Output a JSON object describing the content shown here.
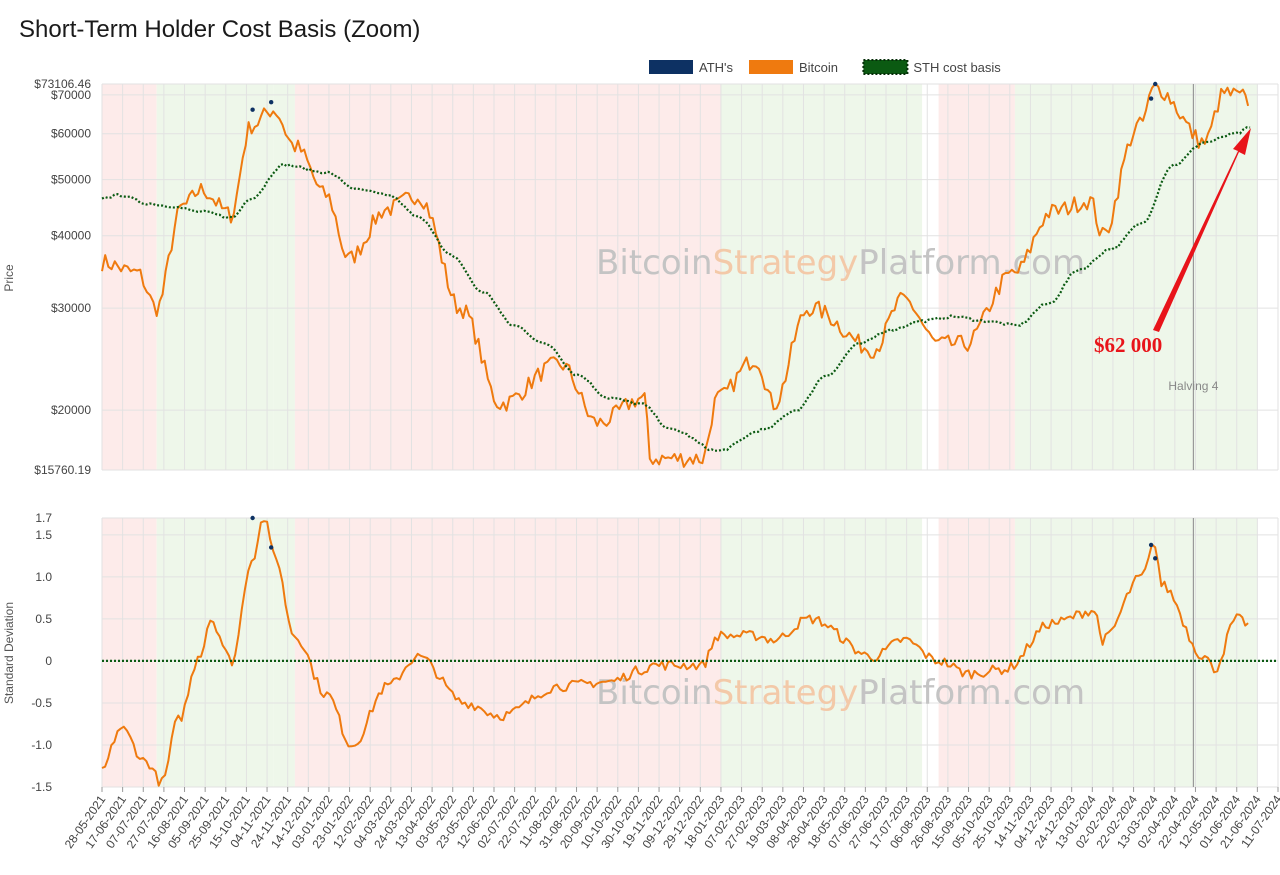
{
  "title": "Short-Term Holder Cost Basis (Zoom)",
  "colors": {
    "ath": "#0d3163",
    "bitcoin": "#ef7a0f",
    "sth": "#0b5a12",
    "arrow": "#e8141a",
    "bear_zone": "#fdebea",
    "bull_zone": "#eef7ea",
    "halving_line": "#999999"
  },
  "legend": [
    {
      "label": "ATH's",
      "color": "#0d3163",
      "style": "solid"
    },
    {
      "label": "Bitcoin",
      "color": "#ef7a0f",
      "style": "solid"
    },
    {
      "label": "STH cost basis",
      "color": "#0b5a12",
      "style": "dotted"
    }
  ],
  "watermark": {
    "part1": "Bitcoin",
    "part2": "Strategy",
    "part3": "Platform.com"
  },
  "annotation": {
    "text": "$62 000"
  },
  "halving": {
    "label": "Halving 4",
    "date": "20-04-2024"
  },
  "chart_data": [
    {
      "type": "line",
      "ylabel": "Price",
      "yscale": "log",
      "ylim": [
        15760.19,
        73106.46
      ],
      "y_ticks": [
        {
          "value": 73106.46,
          "label": "$73106.46"
        },
        {
          "value": 70000,
          "label": "$70000"
        },
        {
          "value": 60000,
          "label": "$60000"
        },
        {
          "value": 50000,
          "label": "$50000"
        },
        {
          "value": 40000,
          "label": "$40000"
        },
        {
          "value": 30000,
          "label": "$30000"
        },
        {
          "value": 20000,
          "label": "$20000"
        },
        {
          "value": 15760.19,
          "label": "$15760.19"
        }
      ],
      "series": [
        {
          "name": "Bitcoin",
          "x": [
            "28-05-2021",
            "01-07-2021",
            "20-07-2021",
            "15-08-2021",
            "01-09-2021",
            "30-09-2021",
            "20-10-2021",
            "10-11-2021",
            "01-12-2021",
            "31-12-2021",
            "22-01-2022",
            "01-03-2022",
            "30-03-2022",
            "10-05-2022",
            "18-06-2022",
            "15-08-2022",
            "20-09-2022",
            "05-11-2022",
            "10-11-2022",
            "31-12-2022",
            "15-01-2023",
            "21-02-2023",
            "10-03-2023",
            "14-04-2023",
            "15-06-2023",
            "14-07-2023",
            "17-08-2023",
            "11-09-2023",
            "30-10-2023",
            "05-12-2023",
            "11-01-2024",
            "23-01-2024",
            "28-02-2024",
            "14-03-2024",
            "01-05-2024",
            "20-05-2024",
            "07-06-2024",
            "12-06-2024"
          ],
          "values": [
            36000,
            34500,
            30000,
            45000,
            48000,
            43500,
            62000,
            66000,
            57000,
            47000,
            36500,
            44500,
            47000,
            30000,
            20500,
            24000,
            19000,
            21000,
            16500,
            16500,
            21000,
            24500,
            20500,
            30000,
            25500,
            31000,
            26000,
            26000,
            34500,
            44000,
            46000,
            40000,
            62000,
            72000,
            58000,
            70500,
            69500,
            67000
          ]
        },
        {
          "name": "STH cost basis",
          "x": [
            "28-05-2021",
            "15-06-2021",
            "10-07-2021",
            "01-08-2021",
            "01-09-2021",
            "01-10-2021",
            "20-10-2021",
            "20-11-2021",
            "30-12-2021",
            "01-02-2022",
            "01-03-2022",
            "01-04-2022",
            "01-05-2022",
            "01-06-2022",
            "01-07-2022",
            "01-08-2022",
            "01-09-2022",
            "01-10-2022",
            "01-11-2022",
            "01-12-2022",
            "15-01-2023",
            "01-03-2023",
            "01-04-2023",
            "01-05-2023",
            "01-06-2023",
            "01-07-2023",
            "01-08-2023",
            "01-09-2023",
            "01-10-2023",
            "01-11-2023",
            "01-12-2023",
            "01-01-2024",
            "01-02-2024",
            "01-03-2024",
            "01-04-2024",
            "01-05-2024",
            "01-06-2024",
            "14-06-2024"
          ],
          "values": [
            46500,
            47000,
            45500,
            45000,
            44000,
            43000,
            46500,
            53000,
            51500,
            48000,
            47000,
            43000,
            37000,
            32000,
            28000,
            26000,
            23000,
            21000,
            20500,
            18500,
            17000,
            18500,
            20000,
            23000,
            26000,
            27500,
            28500,
            29000,
            28500,
            28000,
            30500,
            35000,
            38000,
            42000,
            53000,
            58000,
            60000,
            61500
          ]
        },
        {
          "name": "ATH's",
          "x": [
            "21-10-2021",
            "08-11-2021",
            "10-03-2024",
            "14-03-2024"
          ],
          "values": [
            66000,
            68000,
            69000,
            73106.46
          ]
        }
      ]
    },
    {
      "type": "line",
      "ylabel": "Standard Deviation",
      "ylim": [
        -1.5,
        1.7
      ],
      "y_ticks": [
        "1.7",
        "1.5",
        "1.0",
        "0.5",
        "0",
        "-0.5",
        "-1.0",
        "-1.5"
      ],
      "series": [
        {
          "name": "Bitcoin",
          "x": [
            "28-05-2021",
            "15-06-2021",
            "10-07-2021",
            "25-07-2021",
            "10-08-2021",
            "01-09-2021",
            "10-09-2021",
            "01-10-2021",
            "20-10-2021",
            "01-11-2021",
            "10-11-2021",
            "01-12-2021",
            "01-01-2022",
            "25-01-2022",
            "01-03-2022",
            "30-03-2022",
            "15-05-2022",
            "18-06-2022",
            "15-08-2022",
            "01-10-2022",
            "05-11-2022",
            "10-11-2022",
            "31-12-2022",
            "15-01-2023",
            "21-02-2023",
            "10-03-2023",
            "14-04-2023",
            "15-06-2023",
            "14-07-2023",
            "17-08-2023",
            "15-09-2023",
            "20-10-2023",
            "05-12-2023",
            "15-01-2024",
            "23-01-2024",
            "01-03-2024",
            "14-03-2024",
            "20-03-2024",
            "01-05-2024",
            "10-05-2024",
            "01-06-2024",
            "12-06-2024"
          ],
          "values": [
            -1.3,
            -0.8,
            -1.2,
            -1.45,
            -0.7,
            0.1,
            0.5,
            0.0,
            1.2,
            1.7,
            1.3,
            0.3,
            -0.4,
            -1.0,
            -0.3,
            0.05,
            -0.5,
            -0.65,
            -0.3,
            -0.25,
            -0.1,
            -0.05,
            -0.05,
            0.3,
            0.3,
            0.25,
            0.5,
            0.05,
            0.25,
            0.0,
            -0.15,
            -0.1,
            0.45,
            0.6,
            0.25,
            1.0,
            1.4,
            0.9,
            0.05,
            -0.1,
            0.5,
            0.45
          ]
        }
      ]
    }
  ],
  "x_ticks": [
    "28-05-2021",
    "17-06-2021",
    "07-07-2021",
    "27-07-2021",
    "16-08-2021",
    "05-09-2021",
    "25-09-2021",
    "15-10-2021",
    "04-11-2021",
    "24-11-2021",
    "14-12-2021",
    "03-01-2022",
    "23-01-2022",
    "12-02-2022",
    "04-03-2022",
    "24-03-2022",
    "13-04-2022",
    "03-05-2022",
    "23-05-2022",
    "12-06-2022",
    "02-07-2022",
    "22-07-2022",
    "11-08-2022",
    "31-08-2022",
    "20-09-2022",
    "10-10-2022",
    "30-10-2022",
    "19-11-2022",
    "09-12-2022",
    "29-12-2022",
    "18-01-2023",
    "07-02-2023",
    "27-02-2023",
    "19-03-2023",
    "08-04-2023",
    "28-04-2023",
    "18-05-2023",
    "07-06-2023",
    "27-06-2023",
    "17-07-2023",
    "06-08-2023",
    "26-08-2023",
    "15-09-2023",
    "05-10-2023",
    "25-10-2023",
    "14-11-2023",
    "04-12-2023",
    "24-12-2023",
    "13-01-2024",
    "02-02-2024",
    "22-02-2024",
    "13-03-2024",
    "02-04-2024",
    "22-04-2024",
    "12-05-2024",
    "01-06-2024",
    "21-06-2024",
    "11-07-2024"
  ]
}
